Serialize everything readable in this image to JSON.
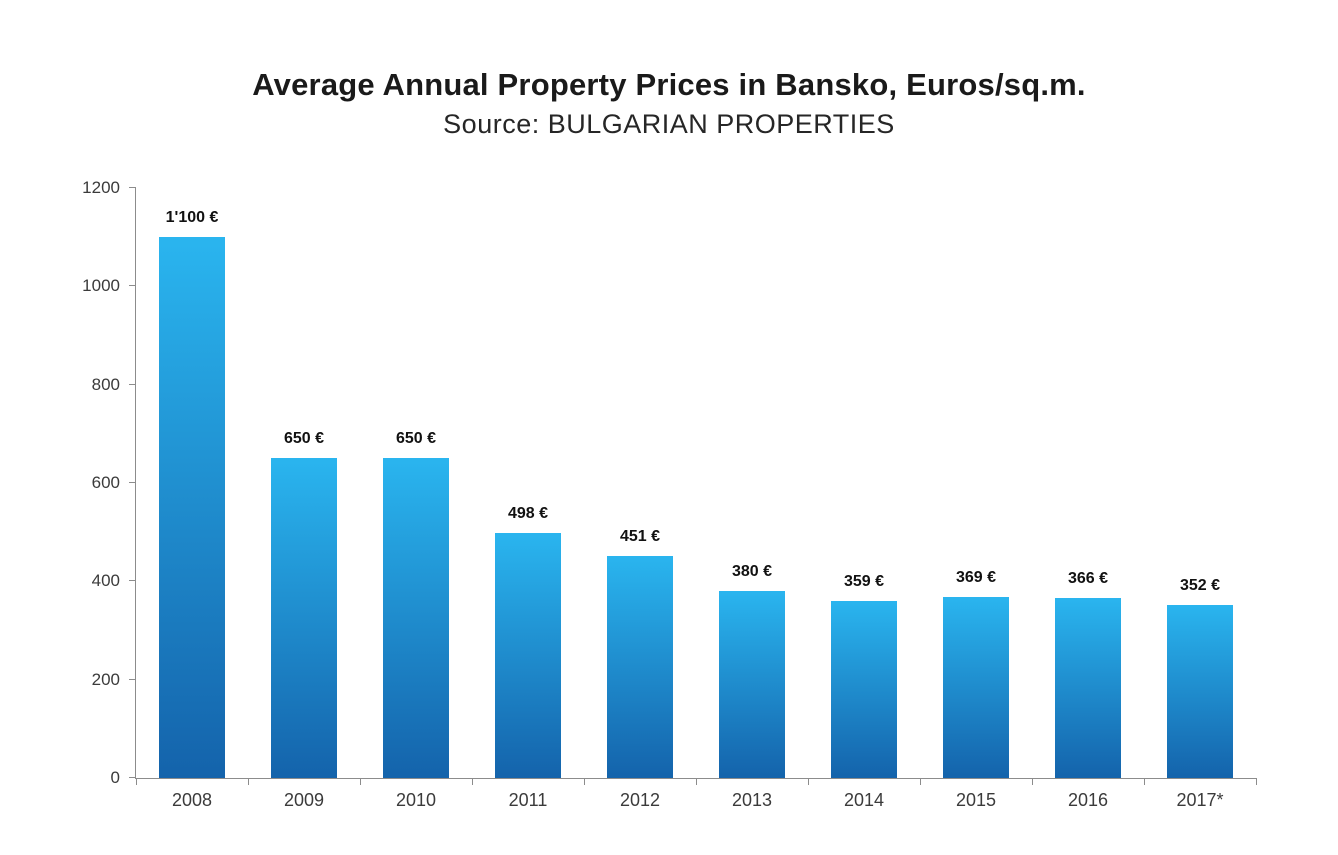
{
  "chart_data": {
    "type": "bar",
    "title": "Average Annual Property Prices in Bansko, Euros/sq.m.",
    "subtitle": "Source: BULGARIAN PROPERTIES",
    "categories": [
      "2008",
      "2009",
      "2010",
      "2011",
      "2012",
      "2013",
      "2014",
      "2015",
      "2016",
      "2017*"
    ],
    "values": [
      1100,
      650,
      650,
      498,
      451,
      380,
      359,
      369,
      366,
      352
    ],
    "value_labels": [
      "1'100 €",
      "650 €",
      "650 €",
      "498 €",
      "451 €",
      "380 €",
      "359 €",
      "369 €",
      "366 €",
      "352 €"
    ],
    "xlabel": "",
    "ylabel": "",
    "ylim": [
      0,
      1200
    ],
    "yticks": [
      0,
      200,
      400,
      600,
      800,
      1000,
      1200
    ],
    "grid": false,
    "legend": false,
    "colors": {
      "bar_top": "#2ab5ef",
      "bar_bottom": "#1463ab",
      "axis": "#8c8c8c",
      "title_text": "#1a1a1a",
      "tick_text": "#3b3b3b"
    }
  }
}
